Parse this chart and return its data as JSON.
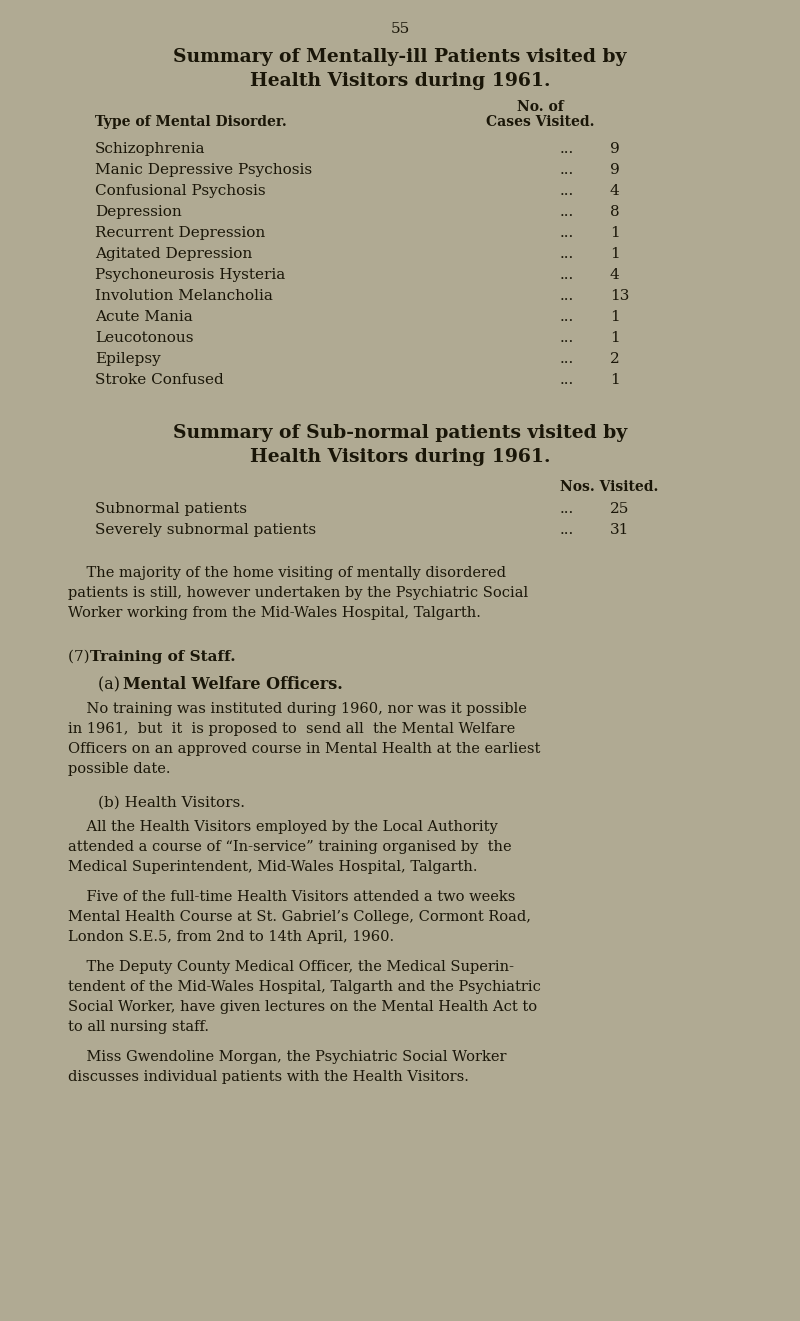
{
  "bg_color": "#b0aa93",
  "text_color": "#1a1608",
  "page_number": "55",
  "title1_line1": "Summary of Mentally-ill Patients visited by",
  "title1_line2": "Health Visitors during 1961.",
  "col_header1": "Type of Mental Disorder.",
  "col_header2_line1": "No. of",
  "col_header2_line2": "Cases Visited.",
  "mentally_ill_rows": [
    [
      "Schizophrenia",
      "... 9"
    ],
    [
      "Manic Depressive Psychosis",
      "... 9"
    ],
    [
      "Confusional Psychosis",
      "... 4"
    ],
    [
      "Depression",
      "... 8"
    ],
    [
      "Recurrent Depression",
      "... 1"
    ],
    [
      "Agitated Depression",
      "... 1"
    ],
    [
      "Psychoneurosis Hysteria",
      "... 4"
    ],
    [
      "Involution Melancholia",
      "... 13"
    ],
    [
      "Acute Mania",
      "... 1"
    ],
    [
      "Leucotonous",
      "... 1"
    ],
    [
      "Epilepsy",
      "... 2"
    ],
    [
      "Stroke Confused",
      "... 1"
    ]
  ],
  "title2_line1": "Summary of Sub-normal patients visited by",
  "title2_line2": "Health Visitors during 1961.",
  "col_header3": "Nos. Visited.",
  "subnormal_rows": [
    [
      "Subnormal patients",
      "... 25"
    ],
    [
      "Severely subnormal patients",
      "... 31"
    ]
  ],
  "para1_lines": [
    "    The majority of the home visiting of mentally disordered",
    "patients is still, however undertaken by the Psychiatric Social",
    "Worker working from the Mid-Wales Hospital, Talgarth."
  ],
  "section_heading_prefix": "(7) ",
  "section_heading_bold": "Training of Staff.",
  "subsection_a_prefix": "(a) ",
  "subsection_a_bold": "Mental Welfare Officers.",
  "para2_lines": [
    "    No training was instituted during 1960, nor was it possible",
    "in 1961,  but  it  is proposed to  send all  the Mental Welfare",
    "Officers on an approved course in Mental Health at the earliest",
    "possible date."
  ],
  "subsection_b": "(b) Health Visitors.",
  "para3_lines": [
    "    All the Health Visitors employed by the Local Authority",
    "attended a course of “In-service” training organised by  the",
    "Medical Superintendent, Mid-Wales Hospital, Talgarth."
  ],
  "para4_lines": [
    "    Five of the full-time Health Visitors attended a two weeks",
    "Mental Health Course at St. Gabriel’s College, Cormont Road,",
    "London S.E.5, from 2nd to 14th April, 1960."
  ],
  "para5_lines": [
    "    The Deputy County Medical Officer, the Medical Superin-",
    "tendent of the Mid-Wales Hospital, Talgarth and the Psychiatric",
    "Social Worker, have given lectures on the Mental Health Act to",
    "to all nursing staff."
  ],
  "para6_lines": [
    "    Miss Gwendoline Morgan, the Psychiatric Social Worker",
    "discusses individual patients with the Health Visitors."
  ]
}
